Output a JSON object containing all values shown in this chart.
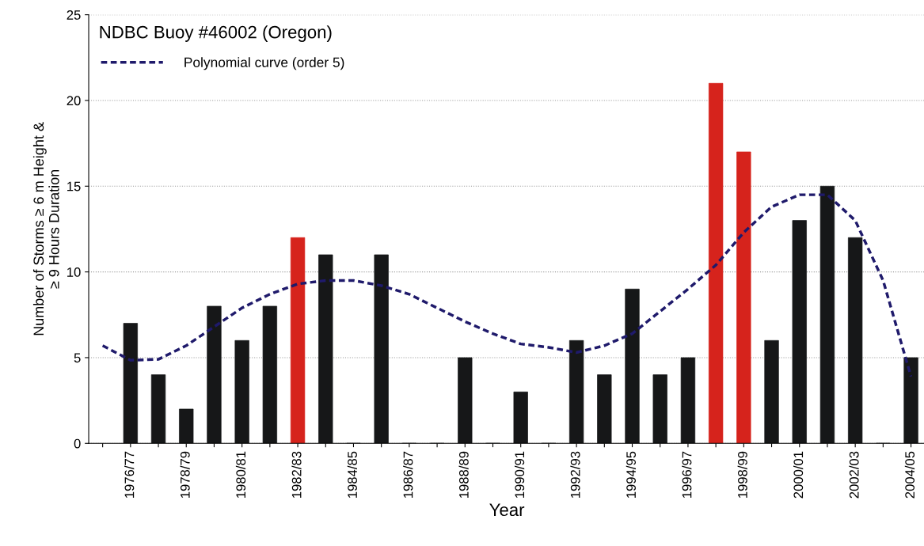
{
  "chart_data": {
    "type": "bar",
    "title": "NDBC Buoy #46002 (Oregon)",
    "xlabel": "Year",
    "ylabel": "Number of Storms ≥ 6 m Height &\n≥ 9 Hours Duration",
    "categories": [
      null,
      "1976/77",
      null,
      "1978/79",
      null,
      "1980/81",
      null,
      "1982/83",
      null,
      "1984/85",
      null,
      "1986/87",
      null,
      "1988/89",
      null,
      "1990/91",
      null,
      "1992/93",
      null,
      "1994/95",
      null,
      "1996/97",
      null,
      "1998/99",
      null,
      "2000/01",
      null,
      "2002/03",
      null,
      "2004/05"
    ],
    "series": [
      {
        "values": [
          null,
          7,
          4,
          2,
          8,
          6,
          8,
          12,
          11,
          0,
          11,
          0,
          0,
          5,
          0,
          3,
          0,
          6,
          4,
          9,
          4,
          5,
          21,
          17,
          6,
          13,
          15,
          12,
          0,
          5
        ],
        "colors": [
          "#161718",
          "#161718",
          "#161718",
          "#161718",
          "#161718",
          "#161718",
          "#161718",
          "#d6231c",
          "#161718",
          "#161718",
          "#161718",
          "#161718",
          "#161718",
          "#161718",
          "#161718",
          "#161718",
          "#161718",
          "#161718",
          "#161718",
          "#161718",
          "#161718",
          "#161718",
          "#d6231c",
          "#d6231c",
          "#161718",
          "#161718",
          "#161718",
          "#161718",
          "#161718",
          "#161718"
        ]
      },
      {
        "type": "line",
        "name": "Polynomial curve (order 5)",
        "color": "#1f1a6b",
        "line_style": "dashed",
        "values": [
          5.7,
          4.85,
          4.9,
          5.7,
          6.8,
          7.9,
          8.7,
          9.3,
          9.5,
          9.5,
          9.2,
          8.7,
          7.9,
          7.1,
          6.4,
          5.8,
          5.6,
          5.3,
          5.7,
          6.4,
          7.7,
          9.0,
          10.4,
          12.3,
          13.8,
          14.5,
          14.5,
          13.0,
          9.5,
          3.9
        ]
      }
    ],
    "ylim": [
      0,
      25
    ],
    "yticks": [
      0,
      5,
      10,
      15,
      20,
      25
    ],
    "grid": "y",
    "legend": "top left"
  }
}
